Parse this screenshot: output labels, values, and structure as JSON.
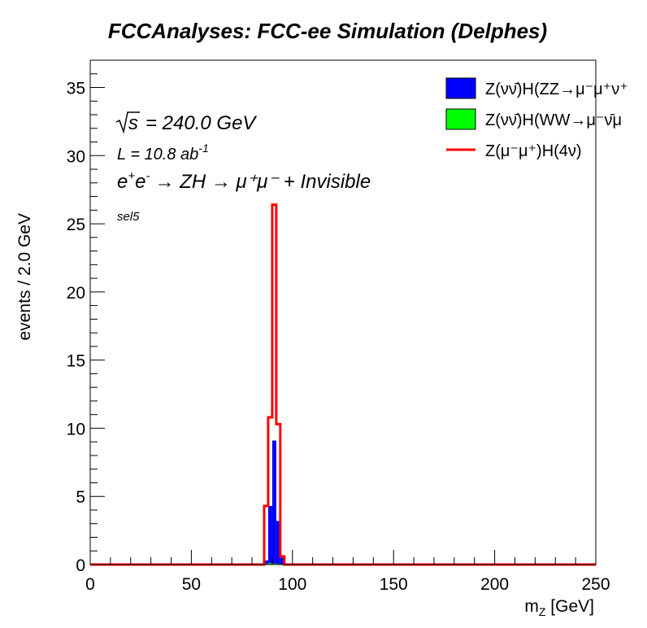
{
  "chart_data": {
    "type": "histogram",
    "title": "FCCAnalyses: FCC-ee Simulation (Delphes)",
    "xlabel": "m_{Z} [GeV]",
    "ylabel": "events / 2.0 GeV",
    "xlim": [
      0,
      250
    ],
    "ylim": [
      0,
      37
    ],
    "bin_width": 2.0,
    "x_ticks": [
      0,
      50,
      100,
      150,
      200,
      250
    ],
    "y_ticks": [
      0,
      5,
      10,
      15,
      20,
      25,
      30,
      35
    ],
    "x_tick_labels": [
      "0",
      "50",
      "100",
      "150",
      "200",
      "250"
    ],
    "y_tick_labels": [
      "0",
      "5",
      "10",
      "15",
      "20",
      "25",
      "30",
      "35"
    ],
    "annotations": {
      "sqrt_s": "= 240.0 GeV",
      "lumi": "L = 10.8 ab",
      "lumi_exp": "-1",
      "process": "→ ZH → μ⁺μ⁻ + Invisible",
      "selection": "sel5"
    },
    "legend_position": "top-right",
    "series": [
      {
        "name": "Z(νν̄)H(ZZ→μ⁻μ⁺ν⁺",
        "style": "filled",
        "color": "#0000ff",
        "bins": [
          [
            86,
            0.3
          ],
          [
            88,
            4.3
          ],
          [
            90,
            9.1
          ],
          [
            92,
            3.2
          ],
          [
            94,
            0.5
          ]
        ]
      },
      {
        "name": "Z(νν̄)H(WW→μ⁻ν̄μ",
        "style": "filled",
        "color": "#00ff00",
        "bins": [
          [
            86,
            0.05
          ],
          [
            88,
            0.1
          ],
          [
            90,
            0.08
          ],
          [
            92,
            0.05
          ]
        ]
      },
      {
        "name": "Z(μ⁻μ⁺)H(4ν)",
        "style": "line",
        "color": "#ff0000",
        "bins": [
          [
            86,
            4.3
          ],
          [
            88,
            10.8
          ],
          [
            90,
            26.4
          ],
          [
            92,
            10.3
          ],
          [
            94,
            0.6
          ]
        ]
      }
    ]
  }
}
